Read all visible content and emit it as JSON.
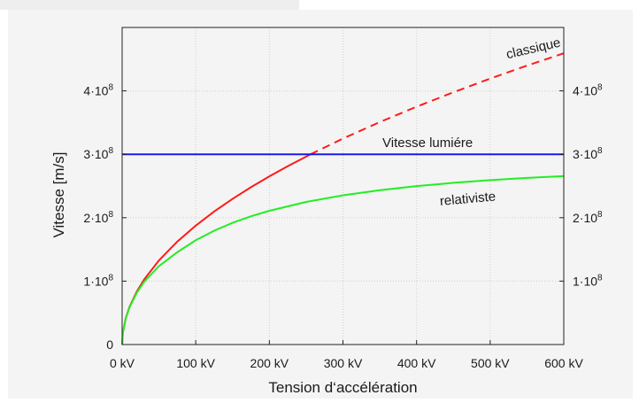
{
  "chart_data": {
    "type": "line",
    "xlabel": "Tension d‘accélération",
    "ylabel": "Vitesse [m/s]",
    "xlim": [
      0,
      600
    ],
    "ylim": [
      0,
      500000000
    ],
    "x_unit": "kV",
    "x_ticks": [
      {
        "value": 0,
        "label": "0 kV"
      },
      {
        "value": 100,
        "label": "100 kV"
      },
      {
        "value": 200,
        "label": "200 kV"
      },
      {
        "value": 300,
        "label": "300 kV"
      },
      {
        "value": 400,
        "label": "400 kV"
      },
      {
        "value": 500,
        "label": "500 kV"
      },
      {
        "value": 600,
        "label": "600 kV"
      }
    ],
    "y_ticks_left": [
      {
        "value": 0,
        "mantissa": "0",
        "exp": ""
      },
      {
        "value": 100000000,
        "mantissa": "1·10",
        "exp": "8"
      },
      {
        "value": 200000000,
        "mantissa": "2·10",
        "exp": "8"
      },
      {
        "value": 300000000,
        "mantissa": "3·10",
        "exp": "8"
      },
      {
        "value": 400000000,
        "mantissa": "4·10",
        "exp": "8"
      }
    ],
    "y_ticks_right": [
      {
        "value": 100000000,
        "mantissa": "1·10",
        "exp": "8"
      },
      {
        "value": 200000000,
        "mantissa": "2·10",
        "exp": "8"
      },
      {
        "value": 300000000,
        "mantissa": "3·10",
        "exp": "8"
      },
      {
        "value": 400000000,
        "mantissa": "4·10",
        "exp": "8"
      }
    ],
    "grid": true,
    "series": [
      {
        "name": "classique",
        "color": "#ff1a1a",
        "style": "solid-then-dashed",
        "dash_after_x": 256,
        "label_anchor_x": 560,
        "x": [
          0,
          1,
          5,
          10,
          20,
          30,
          50,
          75,
          100,
          125,
          150,
          175,
          200,
          225,
          256,
          300,
          350,
          400,
          450,
          500,
          550,
          600
        ],
        "y": [
          0,
          18700000,
          41900000,
          59300000,
          83900000,
          102700000,
          132600000,
          162400000,
          187500000,
          209700000,
          229700000,
          248100000,
          265200000,
          281300000,
          300000000,
          324800000,
          350800000,
          375000000,
          397800000,
          419300000,
          439800000,
          459300000
        ]
      },
      {
        "name": "relativiste",
        "color": "#22ee22",
        "style": "solid",
        "label_anchor_x": 470,
        "x": [
          0,
          1,
          5,
          10,
          20,
          30,
          50,
          75,
          100,
          125,
          150,
          175,
          200,
          250,
          300,
          350,
          400,
          450,
          500,
          550,
          600
        ],
        "y": [
          0,
          18700000,
          41500000,
          58500000,
          81800000,
          99000000,
          123600000,
          145600000,
          164400000,
          179500000,
          191900000,
          202200000,
          210900000,
          224800000,
          235300000,
          243400000,
          249800000,
          255000000,
          259200000,
          262700000,
          265600000
        ]
      },
      {
        "name": "Vitesse lumiére",
        "color": "#1a1aee",
        "style": "solid",
        "label_anchor_x": 415,
        "x": [
          0,
          600
        ],
        "y": [
          300000000,
          300000000
        ]
      }
    ]
  }
}
